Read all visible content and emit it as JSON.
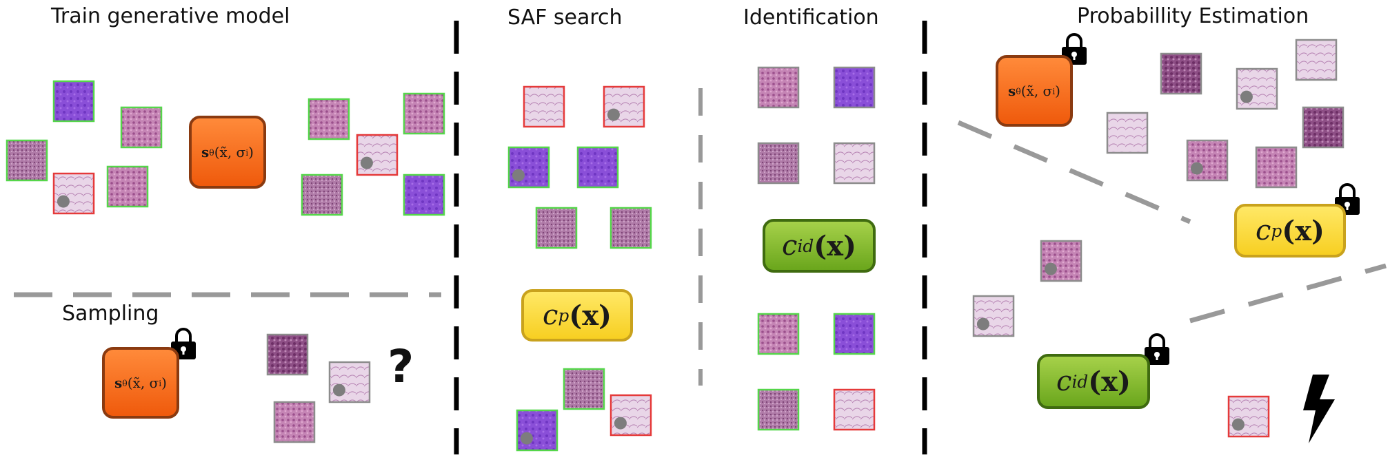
{
  "titles": {
    "train": "Train generative model",
    "sampling": "Sampling",
    "saf": "SAF search",
    "identification": "Identification",
    "probability": "Probabillity Estimation"
  },
  "models": {
    "score_prefix": "s",
    "score_sub": "θ",
    "score_args": "(x̃, σ",
    "score_args_sub": "i",
    "score_close": ")",
    "cp_prefix": "c",
    "cp_sub": "p",
    "cp_args": "(x)",
    "cid_prefix": "c",
    "cid_sub": "id",
    "cid_args": "(x)"
  },
  "symbols": {
    "question": "?"
  },
  "colors": {
    "green_border": "#55d64a",
    "red_border": "#e53a3a",
    "gray_border": "#8c8c8c",
    "purple_tile": "#8a4fd8",
    "pink_tile": "#c884b8",
    "light_tile": "#e6d3e6",
    "dashed_gray": "#999999"
  }
}
